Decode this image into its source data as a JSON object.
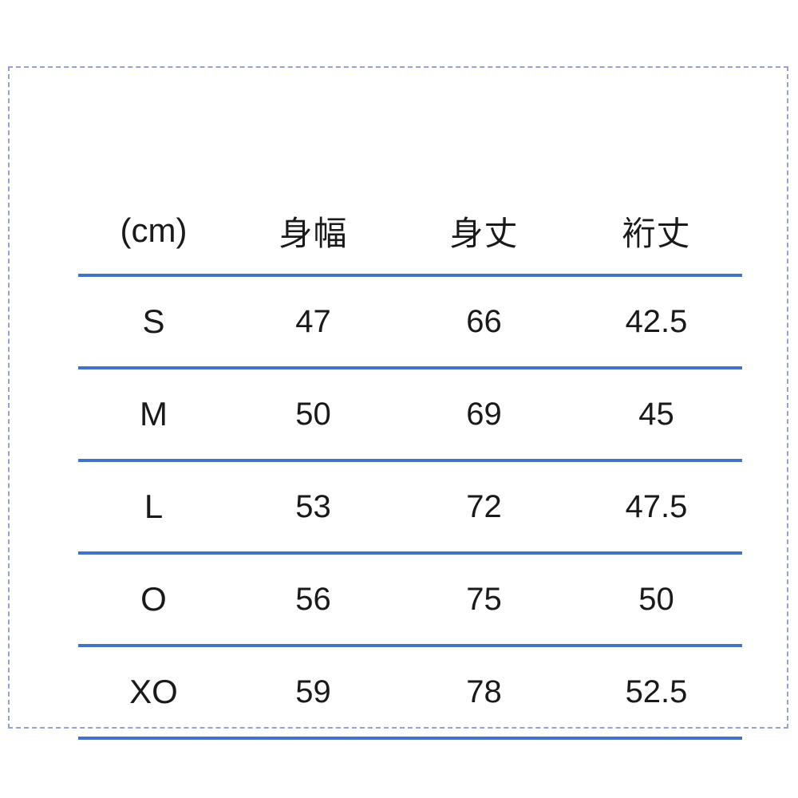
{
  "page": {
    "background_color": "#ffffff",
    "frame_border_color": "#94a2d8",
    "rule_color": "#4472C4",
    "text_color": "#1a1a1a"
  },
  "chart_data": {
    "type": "table",
    "unit_label": "(cm)",
    "measurement_columns": [
      "身幅",
      "身丈",
      "裄丈"
    ],
    "columns": [
      "(cm)",
      "身幅",
      "身丈",
      "裄丈"
    ],
    "rows": [
      {
        "size": "S",
        "values": [
          "47",
          "66",
          "42.5"
        ]
      },
      {
        "size": "M",
        "values": [
          "50",
          "69",
          "45"
        ]
      },
      {
        "size": "L",
        "values": [
          "53",
          "72",
          "47.5"
        ]
      },
      {
        "size": "O",
        "values": [
          "56",
          "75",
          "50"
        ]
      },
      {
        "size": "XO",
        "values": [
          "59",
          "78",
          "52.5"
        ]
      }
    ]
  }
}
